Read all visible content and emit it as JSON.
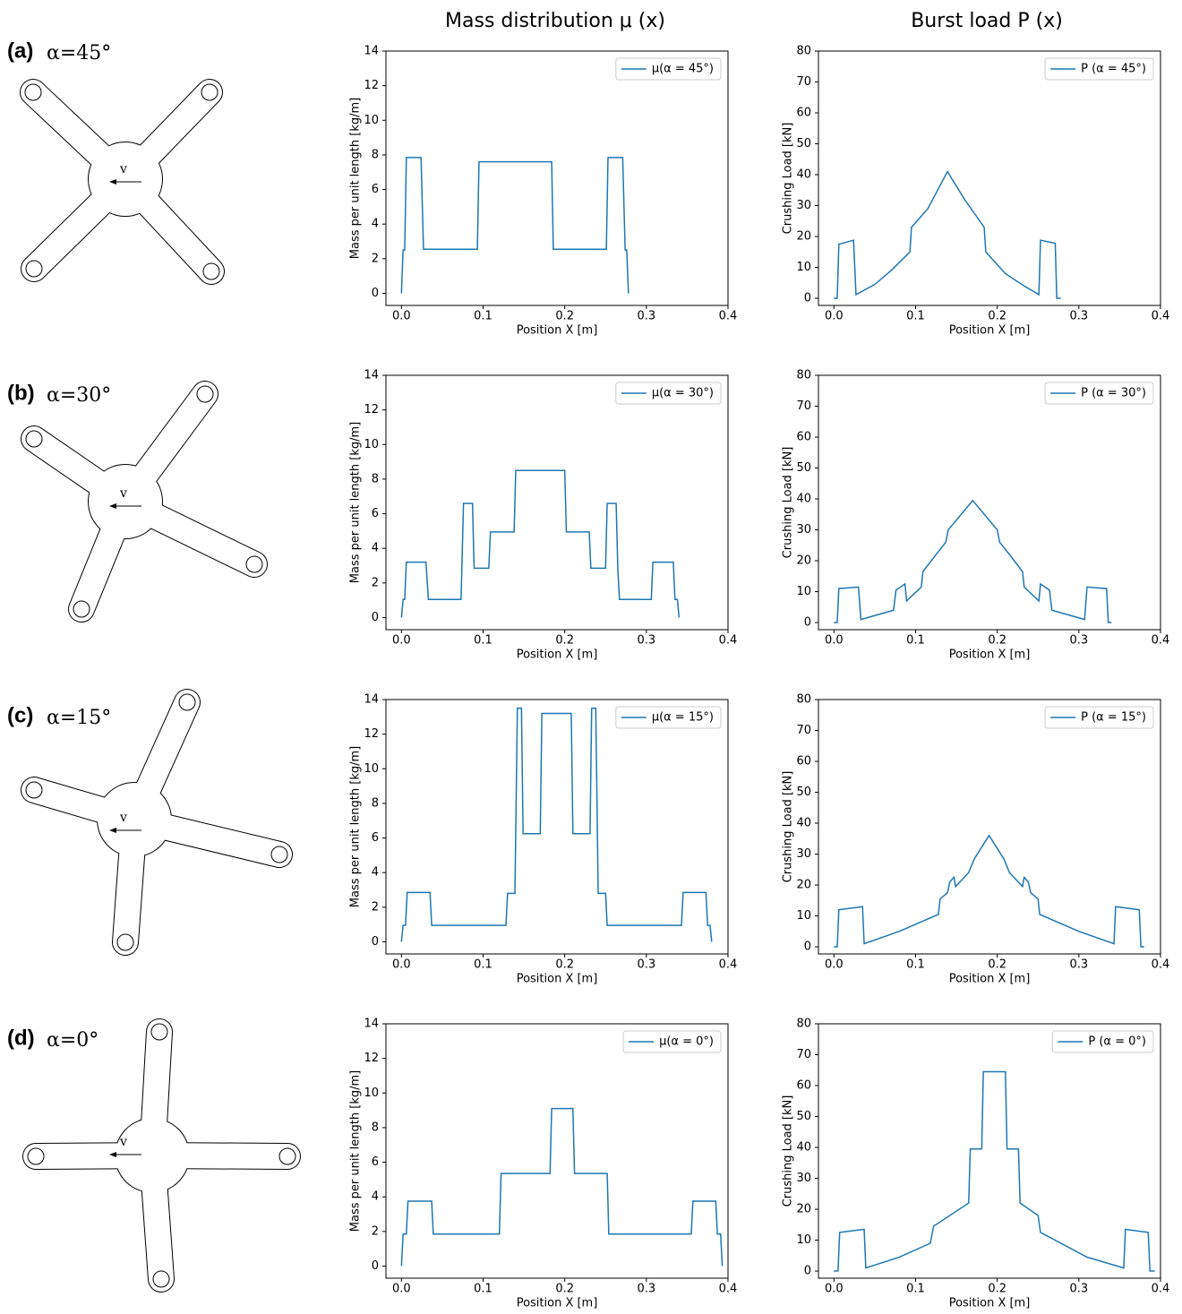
{
  "headers": [
    "Mass distribution μ (x)",
    "Burst load P (x)"
  ],
  "rows": [
    {
      "label": "(a)",
      "angle": "α=45°",
      "velocity": "v"
    },
    {
      "label": "(b)",
      "angle": "α=30°",
      "velocity": "v"
    },
    {
      "label": "(c)",
      "angle": "α=15°",
      "velocity": "v"
    },
    {
      "label": "(d)",
      "angle": "α=0°",
      "velocity": "v"
    }
  ],
  "chart_data": [
    {
      "type": "line",
      "xlabel": "Position X [m]",
      "ylabel": "Mass per unit length [kg/m]",
      "xlim": [
        -0.019,
        0.4
      ],
      "ylim": [
        -0.7,
        14
      ],
      "xticks": [
        {
          "value": 0,
          "label": "0.0"
        },
        0.1,
        0.2,
        0.3,
        0.4
      ],
      "yticks": [
        0,
        2,
        4,
        6,
        8,
        10,
        12,
        14
      ],
      "legend": "upper right",
      "x": [
        0,
        0.002,
        0.004,
        0.006,
        0.024,
        0.027,
        0.093,
        0.095,
        0.184,
        0.186,
        0.251,
        0.253,
        0.271,
        0.274,
        0.276,
        0.278
      ],
      "series": [
        {
          "name": "μ(α = 45°)",
          "color": "#1f77b4",
          "values": [
            0,
            2.5,
            2.5,
            7.85,
            7.85,
            2.55,
            2.55,
            7.6,
            7.6,
            2.55,
            2.55,
            7.85,
            7.85,
            2.5,
            2.5,
            0
          ]
        }
      ]
    },
    {
      "type": "line",
      "xlabel": "Position X [m]",
      "ylabel": "Crushing Load [kN]",
      "xlim": [
        -0.019,
        0.4
      ],
      "ylim": [
        -2.3,
        80
      ],
      "xticks": [
        {
          "value": 0,
          "label": "0.0"
        },
        0.1,
        0.2,
        0.3,
        0.4
      ],
      "yticks": [
        0,
        10,
        20,
        30,
        40,
        50,
        60,
        70,
        80
      ],
      "legend": "upper right",
      "x": [
        0,
        0.004,
        0.006,
        0.024,
        0.027,
        0.05,
        0.07,
        0.093,
        0.095,
        0.115,
        0.139,
        0.16,
        0.184,
        0.186,
        0.21,
        0.23,
        0.251,
        0.253,
        0.271,
        0.273,
        0.278
      ],
      "series": [
        {
          "name": "P (α = 45°)",
          "color": "#1f77b4",
          "values": [
            0,
            0,
            17.5,
            18.8,
            1.2,
            4.5,
            9,
            15,
            23,
            29,
            41,
            32,
            23,
            15,
            8,
            4.5,
            1.2,
            18.8,
            17.8,
            0,
            0
          ]
        }
      ]
    },
    {
      "type": "line",
      "xlabel": "Position X [m]",
      "ylabel": "Mass per unit length [kg/m]",
      "xlim": [
        -0.019,
        0.4
      ],
      "ylim": [
        -0.7,
        14
      ],
      "xticks": [
        {
          "value": 0,
          "label": "0.0"
        },
        0.1,
        0.2,
        0.3,
        0.4
      ],
      "yticks": [
        0,
        2,
        4,
        6,
        8,
        10,
        12,
        14
      ],
      "legend": "upper right",
      "x": [
        0,
        0.002,
        0.004,
        0.006,
        0.03,
        0.033,
        0.073,
        0.074,
        0.076,
        0.087,
        0.089,
        0.107,
        0.109,
        0.138,
        0.14,
        0.2,
        0.202,
        0.23,
        0.232,
        0.25,
        0.252,
        0.263,
        0.265,
        0.267,
        0.306,
        0.308,
        0.333,
        0.335,
        0.338,
        0.34
      ],
      "series": [
        {
          "name": "μ(α = 30°)",
          "color": "#1f77b4",
          "values": [
            0,
            1.05,
            1.05,
            3.2,
            3.2,
            1.05,
            1.05,
            2.85,
            6.6,
            6.6,
            2.85,
            2.85,
            4.95,
            4.95,
            8.5,
            8.5,
            4.95,
            4.95,
            2.85,
            2.85,
            6.6,
            6.6,
            2.85,
            1.05,
            1.05,
            3.2,
            3.2,
            1.05,
            1.05,
            0
          ]
        }
      ]
    },
    {
      "type": "line",
      "xlabel": "Position X [m]",
      "ylabel": "Crushing Load [kN]",
      "xlim": [
        -0.019,
        0.4
      ],
      "ylim": [
        -2.3,
        80
      ],
      "xticks": [
        {
          "value": 0,
          "label": "0.0"
        },
        0.1,
        0.2,
        0.3,
        0.4
      ],
      "yticks": [
        0,
        10,
        20,
        30,
        40,
        50,
        60,
        70,
        80
      ],
      "legend": "upper right",
      "x": [
        0,
        0.004,
        0.006,
        0.03,
        0.033,
        0.073,
        0.076,
        0.087,
        0.089,
        0.107,
        0.109,
        0.125,
        0.137,
        0.14,
        0.17,
        0.2,
        0.203,
        0.215,
        0.231,
        0.233,
        0.251,
        0.253,
        0.264,
        0.267,
        0.307,
        0.31,
        0.334,
        0.336,
        0.34
      ],
      "series": [
        {
          "name": "P (α = 30°)",
          "color": "#1f77b4",
          "values": [
            0,
            0,
            11,
            11.5,
            1,
            4,
            10.5,
            12.5,
            7,
            11.5,
            16.5,
            22,
            26,
            30,
            39.5,
            30,
            26,
            22,
            16.5,
            11.5,
            7,
            12.5,
            10.5,
            4,
            1,
            11.5,
            11,
            0,
            0
          ]
        }
      ]
    },
    {
      "type": "line",
      "xlabel": "Position X [m]",
      "ylabel": "Mass per unit length [kg/m]",
      "xlim": [
        -0.019,
        0.4
      ],
      "ylim": [
        -0.7,
        14
      ],
      "xticks": [
        {
          "value": 0,
          "label": "0.0"
        },
        0.1,
        0.2,
        0.3,
        0.4
      ],
      "yticks": [
        0,
        2,
        4,
        6,
        8,
        10,
        12,
        14
      ],
      "legend": "upper right",
      "x": [
        0,
        0.002,
        0.005,
        0.007,
        0.035,
        0.037,
        0.128,
        0.13,
        0.139,
        0.142,
        0.147,
        0.149,
        0.17,
        0.172,
        0.208,
        0.21,
        0.231,
        0.233,
        0.238,
        0.241,
        0.25,
        0.252,
        0.343,
        0.345,
        0.373,
        0.375,
        0.378,
        0.38
      ],
      "series": [
        {
          "name": "μ(α = 15°)",
          "color": "#1f77b4",
          "values": [
            0,
            0.95,
            0.95,
            2.85,
            2.85,
            0.95,
            0.95,
            2.8,
            2.8,
            13.5,
            13.5,
            6.25,
            6.25,
            13.2,
            13.2,
            6.25,
            6.25,
            13.5,
            13.5,
            2.8,
            2.8,
            0.95,
            0.95,
            2.85,
            2.85,
            0.95,
            0.95,
            0
          ]
        }
      ]
    },
    {
      "type": "line",
      "xlabel": "Position X [m]",
      "ylabel": "Crushing Load [kN]",
      "xlim": [
        -0.019,
        0.4
      ],
      "ylim": [
        -2.3,
        80
      ],
      "xticks": [
        {
          "value": 0,
          "label": "0.0"
        },
        0.1,
        0.2,
        0.3,
        0.4
      ],
      "yticks": [
        0,
        10,
        20,
        30,
        40,
        50,
        60,
        70,
        80
      ],
      "legend": "upper right",
      "x": [
        0,
        0.004,
        0.006,
        0.035,
        0.037,
        0.08,
        0.128,
        0.13,
        0.139,
        0.142,
        0.147,
        0.149,
        0.165,
        0.172,
        0.19,
        0.208,
        0.215,
        0.231,
        0.233,
        0.238,
        0.241,
        0.25,
        0.252,
        0.3,
        0.343,
        0.345,
        0.374,
        0.376,
        0.38
      ],
      "series": [
        {
          "name": "P (α = 15°)",
          "color": "#1f77b4",
          "values": [
            0,
            0,
            12,
            13,
            1,
            5,
            10.5,
            15.5,
            17.5,
            21,
            22.5,
            19.5,
            24,
            28.5,
            36,
            28.5,
            24,
            19.5,
            22.5,
            21,
            17.5,
            15.5,
            10.5,
            5,
            1,
            13,
            12,
            0,
            0
          ]
        }
      ]
    },
    {
      "type": "line",
      "xlabel": "Position X [m]",
      "ylabel": "Mass per unit length [kg/m]",
      "xlim": [
        -0.019,
        0.4
      ],
      "ylim": [
        -0.7,
        14
      ],
      "xticks": [
        {
          "value": 0,
          "label": "0.0"
        },
        0.1,
        0.2,
        0.3,
        0.4
      ],
      "yticks": [
        0,
        2,
        4,
        6,
        8,
        10,
        12,
        14
      ],
      "legend": "upper right",
      "x": [
        0,
        0.002,
        0.006,
        0.008,
        0.037,
        0.039,
        0.12,
        0.122,
        0.182,
        0.184,
        0.21,
        0.212,
        0.252,
        0.254,
        0.355,
        0.357,
        0.385,
        0.387,
        0.391,
        0.393
      ],
      "series": [
        {
          "name": "μ(α = 0°)",
          "color": "#1f77b4",
          "values": [
            0,
            1.85,
            1.85,
            3.75,
            3.75,
            1.85,
            1.85,
            5.35,
            5.35,
            9.1,
            9.1,
            5.35,
            5.35,
            1.85,
            1.85,
            3.75,
            3.75,
            1.85,
            1.85,
            0
          ]
        }
      ]
    },
    {
      "type": "line",
      "xlabel": "Position X [m]",
      "ylabel": "Crushing Load [kN]",
      "xlim": [
        -0.019,
        0.4
      ],
      "ylim": [
        -2.3,
        80
      ],
      "xticks": [
        {
          "value": 0,
          "label": "0.0"
        },
        0.1,
        0.2,
        0.3,
        0.4
      ],
      "yticks": [
        0,
        10,
        20,
        30,
        40,
        50,
        60,
        70,
        80
      ],
      "legend": "upper right",
      "x": [
        0,
        0.005,
        0.007,
        0.037,
        0.039,
        0.08,
        0.118,
        0.122,
        0.165,
        0.167,
        0.181,
        0.183,
        0.21,
        0.212,
        0.226,
        0.228,
        0.25,
        0.253,
        0.31,
        0.355,
        0.357,
        0.385,
        0.387,
        0.393
      ],
      "series": [
        {
          "name": "P (α = 0°)",
          "color": "#1f77b4",
          "values": [
            0,
            0,
            12.5,
            13.5,
            1,
            4.5,
            9,
            14.5,
            22,
            39.5,
            39.5,
            64.5,
            64.5,
            39.5,
            39.5,
            22,
            18,
            12.5,
            4.5,
            1,
            13.5,
            12.5,
            0,
            0
          ]
        }
      ]
    }
  ]
}
